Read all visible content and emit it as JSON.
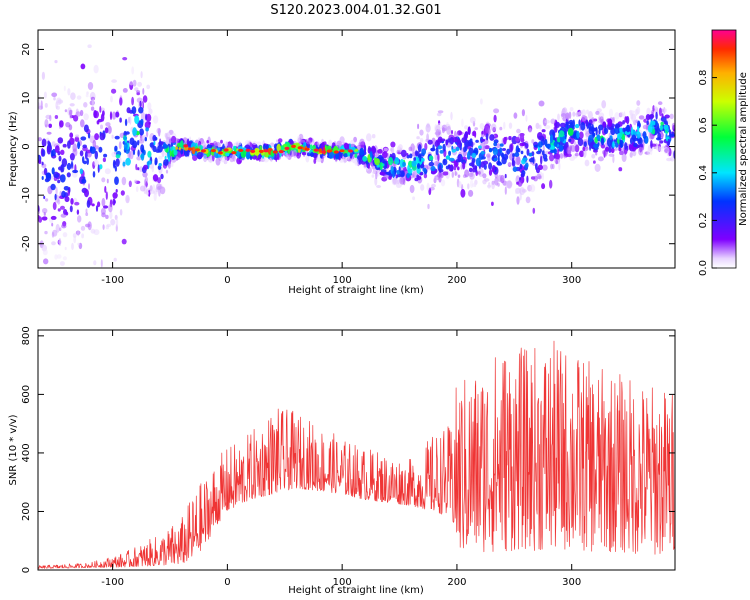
{
  "title": "S120.2023.004.01.32.G01",
  "chart_data": [
    {
      "type": "heatmap",
      "xlabel": "Height of straight line (km)",
      "ylabel": "Frequency (Hz)",
      "xlim": [
        -165,
        390
      ],
      "ylim": [
        -25,
        24
      ],
      "xticks": [
        -100,
        0,
        100,
        200,
        300
      ],
      "yticks": [
        -20,
        -10,
        0,
        10,
        20
      ],
      "colorbar": {
        "label": "Normalized spectral amplitude",
        "range": [
          0.0,
          1.0
        ],
        "ticks": [
          0.0,
          0.2,
          0.4,
          0.6,
          0.8
        ]
      },
      "ridge": {
        "x": [
          -160,
          -140,
          -120,
          -100,
          -80,
          -60,
          -50,
          -40,
          -20,
          0,
          20,
          40,
          60,
          80,
          100,
          110,
          120,
          130,
          140,
          160,
          180,
          200,
          220,
          240,
          260,
          280,
          300,
          320,
          340,
          360,
          380,
          390
        ],
        "frequency": [
          -5,
          -5,
          -4,
          -3,
          3,
          -3,
          -1,
          0,
          -1,
          -1,
          -1,
          -1,
          0,
          -1,
          -1,
          -1,
          -2,
          -3,
          -4,
          -4,
          -2,
          -1,
          -1,
          -2,
          -3,
          0,
          3,
          2,
          2,
          3,
          4,
          1
        ],
        "amplitude": [
          0.25,
          0.3,
          0.35,
          0.4,
          0.5,
          0.45,
          0.6,
          0.9,
          0.9,
          0.8,
          0.9,
          0.95,
          0.9,
          0.85,
          0.85,
          0.75,
          0.65,
          0.7,
          0.75,
          0.5,
          0.45,
          0.35,
          0.4,
          0.35,
          0.35,
          0.4,
          0.5,
          0.5,
          0.5,
          0.5,
          0.5,
          0.45
        ],
        "spread": [
          12,
          12,
          11,
          10,
          8,
          5,
          2,
          1,
          1,
          1,
          1,
          1,
          1,
          1,
          1,
          1,
          1.5,
          2,
          2,
          3,
          4,
          4,
          5,
          5,
          5,
          4,
          3,
          3,
          3,
          3,
          3,
          3
        ]
      }
    },
    {
      "type": "line",
      "xlabel": "Height of straight line (km)",
      "ylabel": "SNR (10 * v/v)",
      "xlim": [
        -165,
        390
      ],
      "ylim": [
        0,
        820
      ],
      "xticks": [
        -100,
        0,
        100,
        200,
        300
      ],
      "yticks": [
        0,
        200,
        400,
        600,
        800
      ],
      "color": "#ef3535",
      "envelope": {
        "x": [
          -165,
          -120,
          -90,
          -60,
          -40,
          -30,
          -20,
          -10,
          0,
          20,
          40,
          60,
          80,
          100,
          120,
          140,
          160,
          180,
          195,
          200,
          220,
          240,
          260,
          280,
          300,
          320,
          340,
          360,
          390
        ],
        "low": [
          5,
          8,
          10,
          15,
          20,
          40,
          80,
          150,
          200,
          240,
          260,
          280,
          270,
          260,
          240,
          230,
          220,
          200,
          180,
          50,
          60,
          60,
          70,
          60,
          70,
          60,
          60,
          50,
          50
        ],
        "high": [
          15,
          25,
          60,
          120,
          180,
          260,
          320,
          380,
          420,
          470,
          560,
          540,
          500,
          450,
          420,
          400,
          380,
          470,
          500,
          650,
          700,
          780,
          760,
          790,
          760,
          700,
          680,
          650,
          620
        ]
      }
    }
  ]
}
